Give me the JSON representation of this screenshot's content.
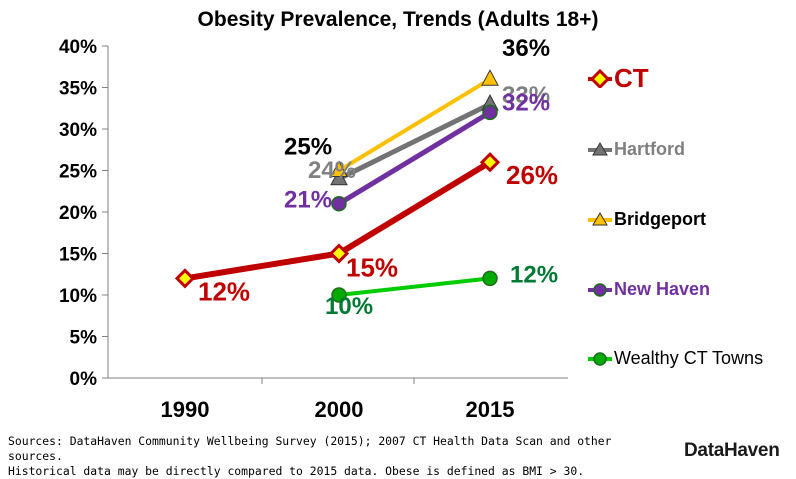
{
  "chart_data": {
    "type": "line",
    "title": "Obesity Prevalence, Trends (Adults 18+)",
    "xlabel": "",
    "ylabel": "",
    "categories": [
      "1990",
      "2000",
      "2015"
    ],
    "ylim": [
      0,
      40
    ],
    "y_ticks": [
      "0%",
      "5%",
      "10%",
      "15%",
      "20%",
      "25%",
      "30%",
      "35%",
      "40%"
    ],
    "grid": false,
    "legend_position": "right",
    "series": [
      {
        "name": "CT",
        "values": [
          12,
          15,
          26
        ],
        "labels": [
          "12%",
          "15%",
          "26%"
        ],
        "color": "#c00000",
        "marker": "diamond",
        "marker_fill": "#ffff00",
        "text_color": "#c00000"
      },
      {
        "name": "Hartford",
        "values": [
          null,
          24,
          33
        ],
        "labels": [
          null,
          "24%",
          "33%"
        ],
        "color": "#737373",
        "marker": "triangle",
        "marker_fill": "#737373",
        "text_color": "#808080"
      },
      {
        "name": "Bridgeport",
        "values": [
          null,
          25,
          36
        ],
        "labels": [
          null,
          "25%",
          "36%"
        ],
        "color": "#ffc000",
        "marker": "triangle",
        "marker_fill": "#ffc000",
        "text_color": "#000000"
      },
      {
        "name": "New Haven",
        "values": [
          null,
          21,
          32
        ],
        "labels": [
          null,
          "21%",
          "32%"
        ],
        "color": "#7030a0",
        "marker": "circle",
        "marker_fill": "#7030a0",
        "text_color": "#7030a0"
      },
      {
        "name": "Wealthy CT Towns",
        "values": [
          null,
          10,
          12
        ],
        "labels": [
          null,
          "10%",
          "12%"
        ],
        "color": "#00cc00",
        "marker": "circle",
        "marker_fill": "#00aa00",
        "text_color": "#007a33"
      }
    ]
  },
  "footer": {
    "source_line1": "Sources: DataHaven Community Wellbeing Survey (2015); 2007 CT Health Data Scan and other sources.",
    "source_line2": "Historical data may be directly compared to 2015 data. Obese is defined as BMI > 30.",
    "logo_text": "DataHaven"
  }
}
